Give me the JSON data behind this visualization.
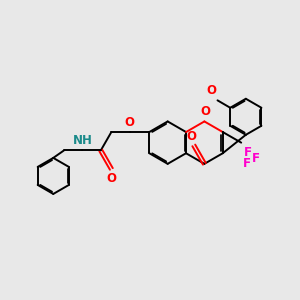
{
  "bg": "#e8e8e8",
  "bc": "#000000",
  "oc": "#ff0000",
  "nc": "#1a8a8a",
  "fc": "#ff00cc",
  "bw": 1.4,
  "dbo": 0.055,
  "fs": 8.5,
  "figsize": [
    3.0,
    3.0
  ],
  "dpi": 100,
  "xlim": [
    0,
    10
  ],
  "ylim": [
    0,
    10
  ]
}
